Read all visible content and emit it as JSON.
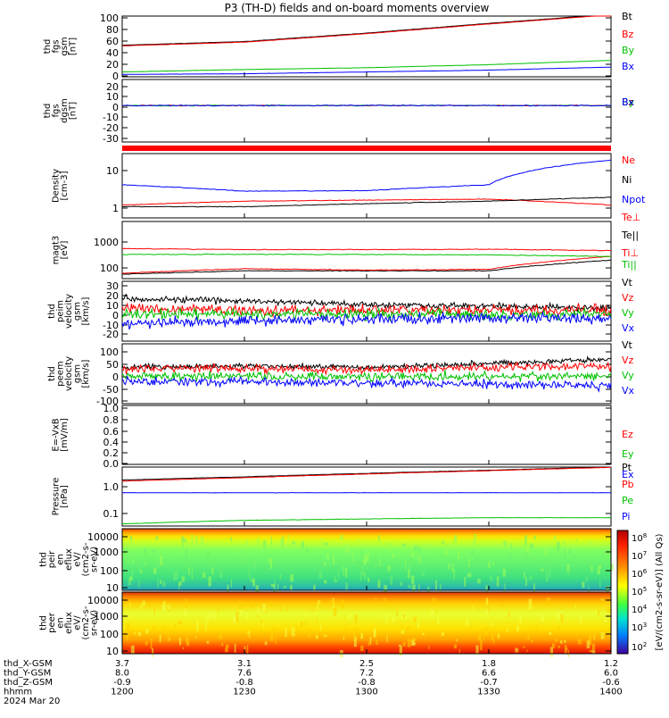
{
  "title": "P3 (TH-D) fields and on-board moments overview",
  "panels": [
    {
      "id": "fgs_mag",
      "ylabel": [
        "thd",
        "fgs",
        "gsm",
        "[nT]"
      ],
      "ticks": [
        "100",
        "80",
        "60",
        "40",
        "20",
        "0"
      ],
      "legend": [
        {
          "t": "Bt",
          "c": "#000000"
        },
        {
          "t": "Bz",
          "c": "#ff0000"
        },
        {
          "t": "By",
          "c": "#00c000"
        },
        {
          "t": "Bx",
          "c": "#0000ff"
        }
      ]
    },
    {
      "id": "fgs_dgsm",
      "ylabel": [
        "thd",
        "fgs",
        "dgsm",
        "[nT]"
      ],
      "ticks": [
        "20",
        "10",
        "0",
        "-10",
        "-20",
        "-30"
      ],
      "legend": [
        {
          "t": "Bz",
          "c": "#ff0000"
        },
        {
          "t": "By",
          "c": "#00c000"
        },
        {
          "t": "Bx",
          "c": "#0000ff"
        }
      ]
    },
    {
      "id": "density",
      "ylabel": [
        "Density",
        "[cm-3]"
      ],
      "ticks": [
        "10",
        "1"
      ],
      "legend": [
        {
          "t": "Ne",
          "c": "#ff0000"
        },
        {
          "t": "Ni",
          "c": "#000000"
        },
        {
          "t": "Npot",
          "c": "#0000ff"
        }
      ]
    },
    {
      "id": "temperature",
      "ylabel": [
        "magt3",
        "[eV]"
      ],
      "ticks": [
        "1000",
        "100"
      ],
      "legend": [
        {
          "t": "Te⊥",
          "c": "#ff0000"
        },
        {
          "t": "Te||",
          "c": "#000000"
        },
        {
          "t": "Ti⊥",
          "c": "#ff0000"
        },
        {
          "t": "Ti||",
          "c": "#00c000"
        }
      ]
    },
    {
      "id": "peim_velocity",
      "ylabel": [
        "thd",
        "peim",
        "velocity",
        "gsm",
        "[km/s]"
      ],
      "ticks": [
        "30",
        "20",
        "10",
        "0",
        "-10",
        "-20"
      ],
      "legend": [
        {
          "t": "Vt",
          "c": "#000000"
        },
        {
          "t": "Vz",
          "c": "#ff0000"
        },
        {
          "t": "Vy",
          "c": "#00c000"
        },
        {
          "t": "Vx",
          "c": "#0000ff"
        }
      ]
    },
    {
      "id": "peem_velocity",
      "ylabel": [
        "thd",
        "peem",
        "velocity",
        "gsm",
        "[km/s]"
      ],
      "ticks": [
        "100",
        "50",
        "0",
        "-50",
        "-100"
      ],
      "legend": [
        {
          "t": "Vt",
          "c": "#000000"
        },
        {
          "t": "Vz",
          "c": "#ff0000"
        },
        {
          "t": "Vy",
          "c": "#00c000"
        },
        {
          "t": "Vx",
          "c": "#0000ff"
        }
      ]
    },
    {
      "id": "efield",
      "ylabel": [
        "E=-VxB",
        "[mV/m]"
      ],
      "ticks": [
        "1.0",
        "0.8",
        "0.6",
        "0.4",
        "0.2",
        "0.0"
      ],
      "legend": [
        {
          "t": "Ez",
          "c": "#ff0000"
        },
        {
          "t": "Ey",
          "c": "#00c000"
        },
        {
          "t": "Ex",
          "c": "#0000ff"
        }
      ]
    },
    {
      "id": "pressure",
      "ylabel": [
        "Pressure",
        "[nPa]"
      ],
      "ticks": [
        "1.0",
        "0.1"
      ],
      "legend": [
        {
          "t": "Pt",
          "c": "#000000"
        },
        {
          "t": "Pb",
          "c": "#ff0000"
        },
        {
          "t": "Pe",
          "c": "#00c000"
        },
        {
          "t": "Pi",
          "c": "#0000ff"
        }
      ]
    },
    {
      "id": "peir_spec",
      "ylabel": [
        "thd",
        "peir",
        "en",
        "eflux",
        "eV/",
        "(cm2-s-",
        "sr-eV)"
      ],
      "ticks": [
        "10000",
        "1000",
        "100",
        "10"
      ]
    },
    {
      "id": "peer_spec",
      "ylabel": [
        "thd",
        "peer",
        "en",
        "eflux",
        "eV/",
        "(cm2-s-",
        "sr-eV)"
      ],
      "ticks": [
        "10000",
        "1000",
        "100",
        "10"
      ]
    }
  ],
  "colorbar": {
    "title": "[eV/(cm^2-s-sr-eV)] (All Qs)",
    "ticks": [
      "10^8",
      "10^7",
      "10^6",
      "10^5",
      "10^4",
      "10^3",
      "10^2"
    ]
  },
  "xaxis": {
    "rows": [
      {
        "label": "thd_X-GSM",
        "values": [
          "3.7",
          "3.1",
          "2.5",
          "1.8",
          "1.2"
        ]
      },
      {
        "label": "thd_Y-GSM",
        "values": [
          "8.0",
          "7.6",
          "7.2",
          "6.6",
          "6.0"
        ]
      },
      {
        "label": "thd_Z-GSM",
        "values": [
          "-0.9",
          "-0.8",
          "-0.8",
          "-0.7",
          "-0.6"
        ]
      },
      {
        "label": "hhmm",
        "values": [
          "1200",
          "1230",
          "1300",
          "1330",
          "1400"
        ]
      }
    ],
    "date": "2024 Mar 20"
  },
  "chart_data": [
    {
      "type": "line",
      "ylabel": "thd fgs gsm [nT]",
      "x": [
        "1200",
        "1230",
        "1300",
        "1330",
        "1400"
      ],
      "ylim": [
        0,
        100
      ],
      "series": [
        {
          "name": "Bt",
          "values": [
            52,
            58,
            72,
            88,
            103
          ]
        },
        {
          "name": "Bz",
          "values": [
            51,
            57,
            71,
            87,
            102
          ]
        },
        {
          "name": "By",
          "values": [
            8,
            12,
            15,
            20,
            27
          ]
        },
        {
          "name": "Bx",
          "values": [
            4,
            5,
            8,
            11,
            16
          ]
        }
      ]
    },
    {
      "type": "line",
      "ylabel": "thd fgs dgsm [nT]",
      "x": [
        "1200",
        "1230",
        "1300",
        "1330",
        "1400"
      ],
      "ylim": [
        -35,
        25
      ],
      "series": [
        {
          "name": "Bz",
          "values": [
            0,
            0,
            0,
            0,
            0
          ]
        },
        {
          "name": "By",
          "values": [
            0,
            0,
            0,
            0,
            0
          ]
        },
        {
          "name": "Bx",
          "values": [
            0,
            0,
            0,
            0,
            0
          ]
        }
      ]
    },
    {
      "type": "line",
      "ylabel": "Density [cm-3]",
      "x": [
        "1200",
        "1230",
        "1300",
        "1330",
        "1400"
      ],
      "log": true,
      "series": [
        {
          "name": "Ne",
          "values": [
            0.9,
            1.2,
            1.3,
            1.4,
            0.9
          ]
        },
        {
          "name": "Ni",
          "values": [
            0.8,
            0.8,
            1.0,
            1.2,
            1.6
          ]
        },
        {
          "name": "Npot",
          "values": [
            4,
            2.5,
            2.6,
            4,
            25
          ]
        }
      ]
    },
    {
      "type": "line",
      "ylabel": "magt3 [eV]",
      "x": [
        "1200",
        "1230",
        "1300",
        "1330",
        "1400"
      ],
      "log": true,
      "series": [
        {
          "name": "Te⊥",
          "values": [
            450,
            420,
            420,
            430,
            390
          ]
        },
        {
          "name": "Te||",
          "values": [
            75,
            95,
            95,
            95,
            200
          ]
        },
        {
          "name": "Ti⊥",
          "values": [
            80,
            110,
            100,
            105,
            260
          ]
        },
        {
          "name": "Ti||",
          "values": [
            300,
            300,
            300,
            290,
            260
          ]
        }
      ]
    },
    {
      "type": "line",
      "ylabel": "thd peim velocity gsm [km/s]",
      "x": [
        "1200",
        "1230",
        "1300",
        "1330",
        "1400"
      ],
      "ylim": [
        -25,
        35
      ],
      "series": [
        {
          "name": "Vt",
          "values": [
            18,
            15,
            12,
            10,
            8
          ]
        },
        {
          "name": "Vz",
          "values": [
            8,
            6,
            6,
            6,
            6
          ]
        },
        {
          "name": "Vy",
          "values": [
            2,
            2,
            2,
            2,
            2
          ]
        },
        {
          "name": "Vx",
          "values": [
            -8,
            -4,
            -3,
            -2,
            -2
          ]
        }
      ]
    },
    {
      "type": "line",
      "ylabel": "thd peem velocity gsm [km/s]",
      "x": [
        "1200",
        "1230",
        "1300",
        "1330",
        "1400"
      ],
      "ylim": [
        -100,
        130
      ],
      "series": [
        {
          "name": "Vt",
          "values": [
            40,
            45,
            40,
            55,
            70
          ]
        },
        {
          "name": "Vz",
          "values": [
            35,
            35,
            30,
            40,
            45
          ]
        },
        {
          "name": "Vy",
          "values": [
            5,
            5,
            5,
            5,
            5
          ]
        },
        {
          "name": "Vx",
          "values": [
            -15,
            -15,
            -20,
            -25,
            -30
          ]
        }
      ]
    },
    {
      "type": "line",
      "ylabel": "E=-VxB [mV/m]",
      "x": [
        "1200",
        "1230",
        "1300",
        "1330",
        "1400"
      ],
      "ylim": [
        0,
        1
      ],
      "series": []
    },
    {
      "type": "line",
      "ylabel": "Pressure [nPa]",
      "x": [
        "1200",
        "1230",
        "1300",
        "1330",
        "1400"
      ],
      "log": true,
      "series": [
        {
          "name": "Pt",
          "values": [
            1.15,
            1.5,
            2.0,
            2.6,
            3.4
          ]
        },
        {
          "name": "Pb",
          "values": [
            1.05,
            1.4,
            1.9,
            2.5,
            3.3
          ]
        },
        {
          "name": "Pe",
          "values": [
            0.03,
            0.04,
            0.045,
            0.05,
            0.05
          ]
        },
        {
          "name": "Pi",
          "values": [
            0.4,
            0.4,
            0.4,
            0.4,
            0.4
          ]
        }
      ]
    },
    {
      "type": "heatmap",
      "ylabel": "thd peir en eflux eV/(cm2-s-sr-eV)",
      "x": [
        "1200",
        "1230",
        "1300",
        "1330",
        "1400"
      ],
      "ylim": [
        7,
        20000
      ],
      "log": true
    },
    {
      "type": "heatmap",
      "ylabel": "thd peer en eflux eV/(cm2-s-sr-eV)",
      "x": [
        "1200",
        "1230",
        "1300",
        "1330",
        "1400"
      ],
      "ylim": [
        7,
        20000
      ],
      "log": true
    }
  ]
}
